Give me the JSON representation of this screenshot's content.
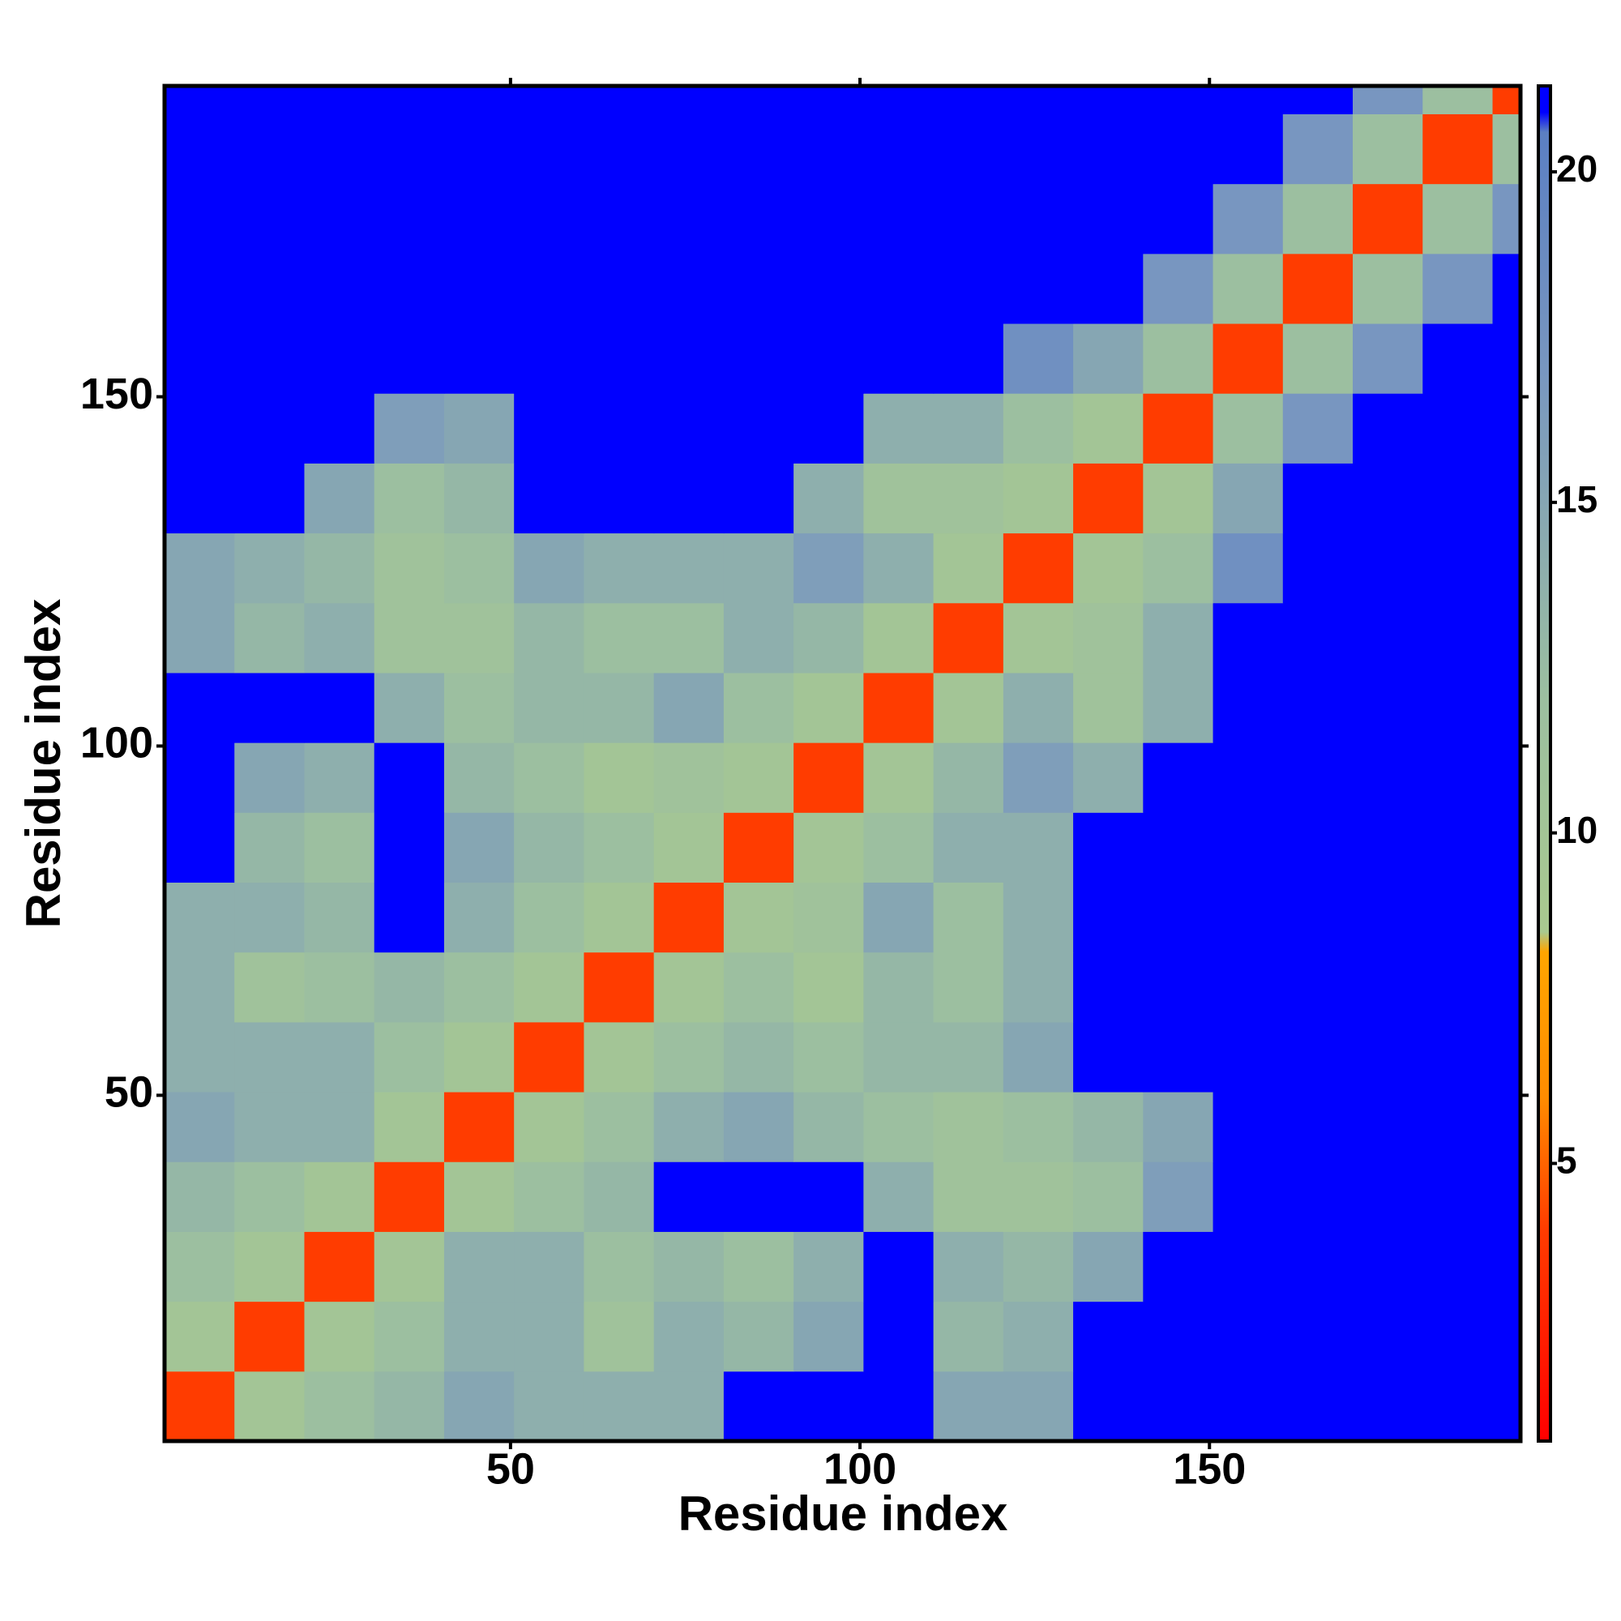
{
  "chart_data": {
    "type": "heatmap",
    "xlabel": "Residue index",
    "ylabel": "Residue index",
    "xlim": [
      0.5,
      194.5
    ],
    "ylim": [
      0.5,
      194.5
    ],
    "xticks": [
      50,
      100,
      150
    ],
    "yticks": [
      50,
      100,
      150
    ],
    "bins": [
      0.5,
      10.5,
      20.5,
      30.5,
      40.5,
      50.5,
      60.5,
      70.5,
      80.5,
      90.5,
      100.5,
      110.5,
      120.5,
      130.5,
      140.5,
      150.5,
      160.5,
      170.5,
      180.5,
      190.5,
      194.5
    ],
    "z": [
      [
        4,
        10,
        12,
        13,
        15,
        14,
        14,
        14,
        21,
        21,
        21,
        15,
        15,
        21,
        21,
        21,
        21,
        21,
        21,
        21
      ],
      [
        10,
        4,
        10,
        12,
        14,
        14,
        11,
        14,
        13,
        15,
        21,
        13,
        14,
        21,
        21,
        21,
        21,
        21,
        21,
        21
      ],
      [
        12,
        10,
        4,
        10,
        14,
        14,
        12,
        13,
        12,
        14,
        21,
        14,
        13,
        15,
        21,
        21,
        21,
        21,
        21,
        21
      ],
      [
        13,
        12,
        10,
        4,
        10,
        12,
        13,
        21,
        21,
        21,
        14,
        11,
        11,
        12,
        16,
        21,
        21,
        21,
        21,
        21
      ],
      [
        15,
        14,
        14,
        10,
        4,
        10,
        12,
        14,
        15,
        13,
        12,
        11,
        12,
        13,
        15,
        21,
        21,
        21,
        21,
        21
      ],
      [
        14,
        14,
        14,
        12,
        10,
        4,
        10,
        12,
        13,
        12,
        13,
        13,
        15,
        21,
        21,
        21,
        21,
        21,
        21,
        21
      ],
      [
        14,
        11,
        12,
        13,
        12,
        10,
        4,
        10,
        12,
        10,
        13,
        12,
        14,
        21,
        21,
        21,
        21,
        21,
        21,
        21
      ],
      [
        14,
        14,
        13,
        21,
        14,
        12,
        10,
        4,
        10,
        11,
        15,
        12,
        14,
        21,
        21,
        21,
        21,
        21,
        21,
        21
      ],
      [
        21,
        13,
        12,
        21,
        15,
        13,
        12,
        10,
        4,
        10,
        12,
        14,
        14,
        21,
        21,
        21,
        21,
        21,
        21,
        21
      ],
      [
        21,
        15,
        14,
        21,
        13,
        12,
        10,
        11,
        10,
        4,
        10,
        13,
        16,
        14,
        21,
        21,
        21,
        21,
        21,
        21
      ],
      [
        21,
        21,
        21,
        14,
        12,
        13,
        13,
        15,
        12,
        10,
        4,
        10,
        14,
        11,
        14,
        21,
        21,
        21,
        21,
        21
      ],
      [
        15,
        13,
        14,
        11,
        11,
        13,
        12,
        12,
        14,
        13,
        10,
        4,
        10,
        11,
        14,
        21,
        21,
        21,
        21,
        21
      ],
      [
        15,
        14,
        13,
        11,
        12,
        15,
        14,
        14,
        14,
        16,
        14,
        10,
        4,
        10,
        12,
        18,
        21,
        21,
        21,
        21
      ],
      [
        21,
        21,
        15,
        12,
        13,
        21,
        21,
        21,
        21,
        14,
        11,
        11,
        10,
        4,
        10,
        15,
        21,
        21,
        21,
        21
      ],
      [
        21,
        21,
        21,
        16,
        15,
        21,
        21,
        21,
        21,
        21,
        14,
        14,
        12,
        10,
        4,
        12,
        17,
        21,
        21,
        21
      ],
      [
        21,
        21,
        21,
        21,
        21,
        21,
        21,
        21,
        21,
        21,
        21,
        21,
        18,
        15,
        12,
        4,
        12,
        17,
        21,
        21
      ],
      [
        21,
        21,
        21,
        21,
        21,
        21,
        21,
        21,
        21,
        21,
        21,
        21,
        21,
        21,
        17,
        12,
        4,
        12,
        17,
        21
      ],
      [
        21,
        21,
        21,
        21,
        21,
        21,
        21,
        21,
        21,
        21,
        21,
        21,
        21,
        21,
        21,
        17,
        12,
        4,
        12,
        17
      ],
      [
        21,
        21,
        21,
        21,
        21,
        21,
        21,
        21,
        21,
        21,
        21,
        21,
        21,
        21,
        21,
        21,
        17,
        12,
        4,
        12
      ],
      [
        21,
        21,
        21,
        21,
        21,
        21,
        21,
        21,
        21,
        21,
        21,
        21,
        21,
        21,
        21,
        21,
        21,
        17,
        12,
        4
      ]
    ],
    "zlim": [
      0.8,
      21.3
    ],
    "zticks": [
      5,
      10,
      15,
      20
    ],
    "colorscale": [
      {
        "value": 0.8,
        "color": "#ff0000"
      },
      {
        "value": 4,
        "color": "#ff3c00"
      },
      {
        "value": 6,
        "color": "#ff8c00"
      },
      {
        "value": 8.2,
        "color": "#ffa500"
      },
      {
        "value": 8.5,
        "color": "#a9c98f"
      },
      {
        "value": 12,
        "color": "#9cbfa0"
      },
      {
        "value": 17,
        "color": "#7896c0"
      },
      {
        "value": 20.6,
        "color": "#5b7fc2"
      },
      {
        "value": 20.9,
        "color": "#0000ff"
      },
      {
        "value": 21.3,
        "color": "#0000ff"
      }
    ]
  }
}
